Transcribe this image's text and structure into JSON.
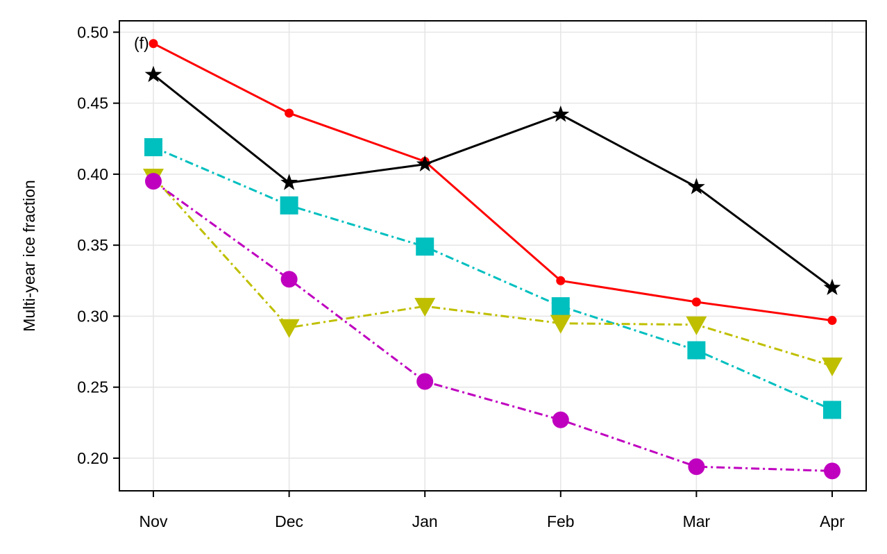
{
  "chart_data": {
    "type": "line",
    "panel_label": "(f)",
    "title": "",
    "xlabel": "",
    "ylabel": "Multi-year ice fraction",
    "categories": [
      "Nov",
      "Dec",
      "Jan",
      "Feb",
      "Mar",
      "Apr"
    ],
    "ylim": [
      0.177,
      0.508
    ],
    "yticks": [
      0.2,
      0.25,
      0.3,
      0.35,
      0.4,
      0.45,
      0.5
    ],
    "ytick_labels": [
      "0.20",
      "0.25",
      "0.30",
      "0.35",
      "0.40",
      "0.45",
      "0.50"
    ],
    "grid": true,
    "legend": "none",
    "series": [
      {
        "values": [
          0.492,
          0.443,
          0.409,
          0.325,
          0.31,
          0.297
        ],
        "color": "#ff0000",
        "linestyle": "solid",
        "marker": "dot"
      },
      {
        "values": [
          0.47,
          0.394,
          0.407,
          0.442,
          0.391,
          0.32
        ],
        "color": "#000000",
        "linestyle": "solid",
        "marker": "star"
      },
      {
        "values": [
          0.419,
          0.378,
          0.349,
          0.307,
          0.276,
          0.234
        ],
        "color": "#00bfbf",
        "linestyle": "dashdot",
        "marker": "square"
      },
      {
        "values": [
          0.398,
          0.292,
          0.307,
          0.295,
          0.294,
          0.265
        ],
        "color": "#bfbf00",
        "linestyle": "dashdot",
        "marker": "triangle-down"
      },
      {
        "values": [
          0.395,
          0.326,
          0.254,
          0.227,
          0.194,
          0.191
        ],
        "color": "#bf00bf",
        "linestyle": "dashdot",
        "marker": "circle"
      }
    ]
  }
}
